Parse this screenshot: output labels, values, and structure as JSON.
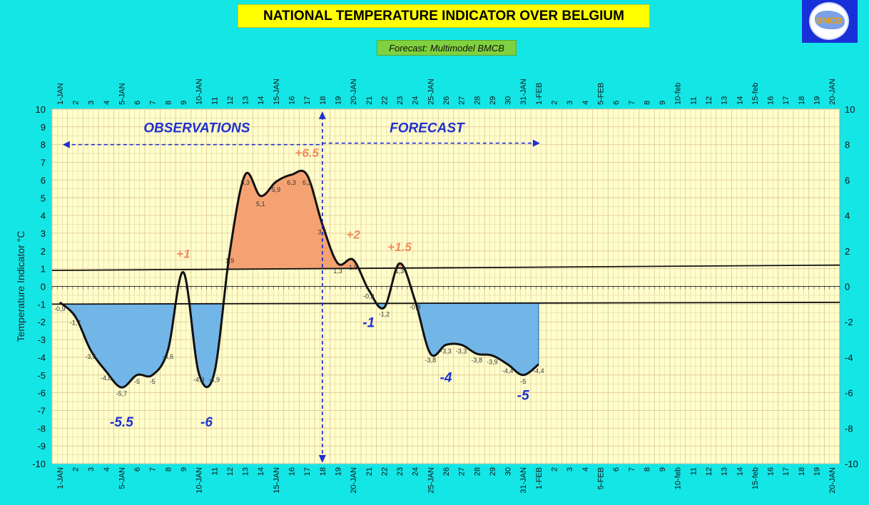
{
  "header": {
    "title": "NATIONAL TEMPERATURE INDICATOR OVER  BELGIUM",
    "subtitle": "Forecast:  Multimodel BMCB",
    "logo_text": "BMCB"
  },
  "colors": {
    "background": "#14e6e6",
    "plot_background": "#ffffcc",
    "grid": "#e0c89a",
    "warm_fill": "#f5a272",
    "cold_fill": "#72b6e8",
    "curve": "#111111",
    "label_warm": "#f08a5a",
    "label_cold": "#2030d0",
    "arrow": "#2030d0"
  },
  "chart_data": {
    "type": "line",
    "title": "NATIONAL TEMPERATURE INDICATOR OVER  BELGIUM",
    "ylabel": "Temperature Indicator   °C",
    "ylim": [
      -10,
      10
    ],
    "y_left_ticks": [
      -10,
      -9,
      -8,
      -7,
      -6,
      -5,
      -4,
      -3,
      -2,
      -1,
      0,
      1,
      2,
      3,
      4,
      5,
      6,
      7,
      8,
      9,
      10
    ],
    "y_right_ticks": [
      -10,
      -8,
      -6,
      -4,
      -2,
      0,
      2,
      4,
      6,
      8,
      10
    ],
    "x_ticks": [
      "1-JAN",
      "2",
      "3",
      "4",
      "5-JAN",
      "6",
      "7",
      "8",
      "9",
      "10-JAN",
      "11",
      "12",
      "13",
      "14",
      "15-JAN",
      "16",
      "17",
      "18",
      "19",
      "20-JAN",
      "21",
      "22",
      "23",
      "24",
      "25-JAN",
      "26",
      "27",
      "28",
      "29",
      "30",
      "31-JAN",
      "1-FEB",
      "2",
      "3",
      "4",
      "5-FEB",
      "6",
      "7",
      "8",
      "9",
      "10-feb",
      "11",
      "12",
      "13",
      "14",
      "15-feb",
      "16",
      "17",
      "18",
      "19",
      "20-JAN"
    ],
    "series": [
      {
        "x": [
          1,
          2,
          3,
          4,
          5,
          6,
          7,
          8,
          9,
          10,
          11,
          12,
          13,
          14,
          15,
          16,
          17,
          18,
          19,
          20,
          21,
          22,
          23,
          24,
          25,
          26,
          27,
          28,
          29,
          30,
          31,
          32
        ],
        "values": [
          -0.9,
          -1.7,
          -3.6,
          -4.8,
          -5.7,
          -5,
          -5,
          -3.6,
          0.8,
          -4.9,
          -4.9,
          1.9,
          6.3,
          5.1,
          5.9,
          6.3,
          6.3,
          3.5,
          1.3,
          1.5,
          -0.2,
          -1.2,
          1.3,
          -0.8,
          -3.8,
          -3.3,
          -3.3,
          -3.8,
          -3.9,
          -4.4,
          -5,
          -4.4
        ],
        "point_labels": [
          "-0,9",
          "-1,7",
          "-3,6",
          "-4,8",
          "-5,7",
          "-5",
          "-5",
          "-3,6",
          "",
          "-4,9",
          "-4,9",
          "1,9",
          "6,3",
          "5,1",
          "5,9",
          "6,3",
          "6,3",
          "3,5",
          "1,3",
          "1,5",
          "-0,2",
          "-1,2",
          "1,3",
          "-0,8",
          "-3,8",
          "-3,3",
          "-3,3",
          "-3,8",
          "-3,9",
          "-4,4",
          "-5",
          "-4,4"
        ]
      }
    ],
    "reference_lines": [
      {
        "y_start": 0.9,
        "y_end": 1.2
      },
      {
        "y_start": -1.0,
        "y_end": -0.9
      }
    ],
    "regions": [
      {
        "label": "OBSERVATIONS",
        "from": 1,
        "to": 18
      },
      {
        "label": "FORECAST",
        "from": 18,
        "to": 32
      }
    ],
    "annotations": [
      {
        "text": "+6.5",
        "x": 17,
        "y": 7.3,
        "kind": "warm"
      },
      {
        "text": "+1",
        "x": 9,
        "y": 1.6,
        "kind": "warm"
      },
      {
        "text": "+2",
        "x": 20,
        "y": 2.7,
        "kind": "warm"
      },
      {
        "text": "+1.5",
        "x": 23,
        "y": 2.0,
        "kind": "warm"
      },
      {
        "text": "-5.5",
        "x": 5,
        "y": -7.9,
        "kind": "cold"
      },
      {
        "text": "-6",
        "x": 10.5,
        "y": -7.9,
        "kind": "cold"
      },
      {
        "text": "-1",
        "x": 21,
        "y": -2.3,
        "kind": "cold"
      },
      {
        "text": "-4",
        "x": 26,
        "y": -5.4,
        "kind": "cold"
      },
      {
        "text": "-5",
        "x": 31,
        "y": -6.4,
        "kind": "cold"
      }
    ],
    "grid": true
  }
}
